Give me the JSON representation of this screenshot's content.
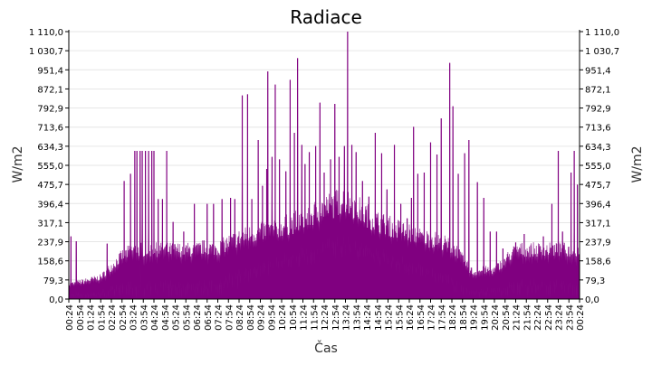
{
  "chart_data": {
    "type": "area",
    "title": "Radiace",
    "xlabel": "Čas",
    "ylabel": "W/m2",
    "ylim": [
      0,
      1110
    ],
    "y_ticks": [
      "0,0",
      "79,3",
      "158,6",
      "237,9",
      "317,1",
      "396,4",
      "475,7",
      "555,0",
      "634,3",
      "713,6",
      "792,9",
      "872,1",
      "951,4",
      "1 030,7",
      "1 110,0"
    ],
    "y_tick_values": [
      0,
      79.3,
      158.6,
      237.9,
      317.1,
      396.4,
      475.7,
      555.0,
      634.3,
      713.6,
      792.9,
      872.1,
      951.4,
      1030.7,
      1110.0
    ],
    "x_ticks": [
      "00:24",
      "00:54",
      "01:24",
      "01:54",
      "02:24",
      "02:54",
      "03:24",
      "03:54",
      "04:24",
      "04:54",
      "05:24",
      "05:54",
      "06:24",
      "06:54",
      "07:24",
      "07:54",
      "08:24",
      "08:54",
      "09:24",
      "09:54",
      "10:24",
      "10:54",
      "11:24",
      "11:54",
      "12:24",
      "12:54",
      "13:24",
      "13:54",
      "14:24",
      "14:54",
      "15:24",
      "15:54",
      "16:24",
      "16:54",
      "17:24",
      "17:54",
      "18:24",
      "18:54",
      "19:24",
      "19:54",
      "20:24",
      "20:54",
      "21:24",
      "21:54",
      "22:24",
      "22:54",
      "23:24",
      "23:54",
      "00:24"
    ],
    "series": [
      {
        "color": "#800080",
        "baseline": [
          [
            0,
            60
          ],
          [
            1.5,
            90
          ],
          [
            2.5,
            180
          ],
          [
            3,
            205
          ],
          [
            6,
            205
          ],
          [
            6.3,
            215
          ],
          [
            7,
            210
          ],
          [
            7.5,
            235
          ],
          [
            8.2,
            260
          ],
          [
            9,
            280
          ],
          [
            10,
            300
          ],
          [
            11,
            330
          ],
          [
            12,
            380
          ],
          [
            12.9,
            410
          ],
          [
            13.5,
            380
          ],
          [
            14.5,
            320
          ],
          [
            15.5,
            290
          ],
          [
            16.5,
            260
          ],
          [
            17.5,
            240
          ],
          [
            18.2,
            205
          ],
          [
            18.6,
            150
          ],
          [
            19,
            110
          ],
          [
            19.5,
            120
          ],
          [
            20,
            120
          ],
          [
            21,
            205
          ],
          [
            23.5,
            205
          ],
          [
            24,
            205
          ]
        ],
        "floor": [
          [
            0,
            0
          ],
          [
            6.5,
            0
          ],
          [
            7,
            10
          ],
          [
            8,
            40
          ],
          [
            9,
            80
          ],
          [
            10,
            110
          ],
          [
            11,
            130
          ],
          [
            12,
            150
          ],
          [
            13,
            170
          ],
          [
            14,
            150
          ],
          [
            15,
            120
          ],
          [
            16,
            90
          ],
          [
            17,
            60
          ],
          [
            18,
            20
          ],
          [
            18.6,
            0
          ],
          [
            24,
            0
          ]
        ],
        "spikes": [
          [
            0.1,
            260
          ],
          [
            0.35,
            240
          ],
          [
            1.8,
            230
          ],
          [
            2.6,
            490
          ],
          [
            2.9,
            520
          ],
          [
            3.1,
            615
          ],
          [
            3.2,
            615
          ],
          [
            3.35,
            615
          ],
          [
            3.45,
            615
          ],
          [
            3.6,
            615
          ],
          [
            3.75,
            615
          ],
          [
            3.9,
            615
          ],
          [
            4.0,
            615
          ],
          [
            4.2,
            415
          ],
          [
            4.4,
            415
          ],
          [
            4.6,
            615
          ],
          [
            4.9,
            320
          ],
          [
            5.4,
            280
          ],
          [
            5.9,
            395
          ],
          [
            6.5,
            395
          ],
          [
            6.8,
            395
          ],
          [
            7.2,
            415
          ],
          [
            7.6,
            420
          ],
          [
            7.8,
            415
          ],
          [
            8.15,
            845
          ],
          [
            8.4,
            850
          ],
          [
            8.6,
            415
          ],
          [
            8.9,
            660
          ],
          [
            9.1,
            470
          ],
          [
            9.3,
            540
          ],
          [
            9.35,
            945
          ],
          [
            9.55,
            590
          ],
          [
            9.7,
            890
          ],
          [
            9.9,
            580
          ],
          [
            10.2,
            530
          ],
          [
            10.4,
            910
          ],
          [
            10.6,
            690
          ],
          [
            10.75,
            1000
          ],
          [
            10.95,
            640
          ],
          [
            11.1,
            560
          ],
          [
            11.3,
            610
          ],
          [
            11.6,
            635
          ],
          [
            11.8,
            815
          ],
          [
            12.0,
            525
          ],
          [
            12.3,
            580
          ],
          [
            12.5,
            810
          ],
          [
            12.7,
            590
          ],
          [
            12.95,
            635
          ],
          [
            13.1,
            1110
          ],
          [
            13.3,
            640
          ],
          [
            13.5,
            610
          ],
          [
            13.8,
            490
          ],
          [
            14.1,
            425
          ],
          [
            14.4,
            690
          ],
          [
            14.7,
            605
          ],
          [
            14.95,
            455
          ],
          [
            15.3,
            640
          ],
          [
            15.6,
            395
          ],
          [
            15.9,
            335
          ],
          [
            16.1,
            420
          ],
          [
            16.2,
            715
          ],
          [
            16.4,
            520
          ],
          [
            16.7,
            525
          ],
          [
            17.0,
            650
          ],
          [
            17.3,
            600
          ],
          [
            17.5,
            750
          ],
          [
            17.9,
            980
          ],
          [
            18.05,
            800
          ],
          [
            18.3,
            520
          ],
          [
            18.6,
            605
          ],
          [
            18.8,
            660
          ],
          [
            19.2,
            485
          ],
          [
            19.5,
            420
          ],
          [
            19.8,
            280
          ],
          [
            20.1,
            280
          ],
          [
            20.4,
            210
          ],
          [
            21.0,
            235
          ],
          [
            21.4,
            270
          ],
          [
            22.3,
            260
          ],
          [
            22.7,
            395
          ],
          [
            23.0,
            615
          ],
          [
            23.2,
            280
          ],
          [
            23.6,
            525
          ],
          [
            23.75,
            615
          ],
          [
            23.9,
            475
          ]
        ]
      }
    ]
  }
}
